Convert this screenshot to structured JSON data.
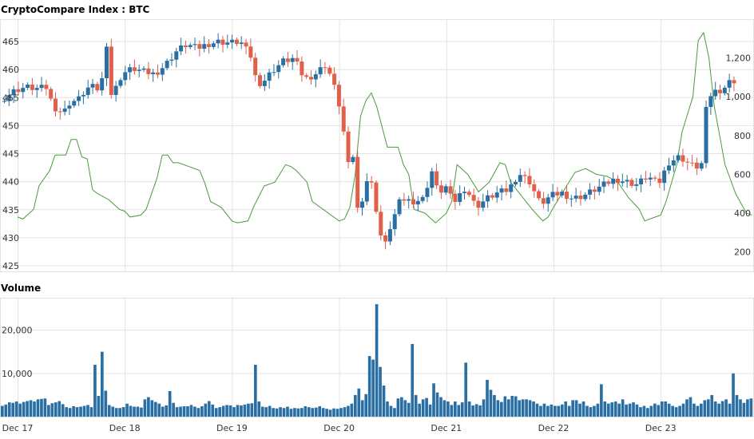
{
  "title": "CryptoCompare Index : BTC",
  "volume_title": "Volume",
  "colors": {
    "up": "#2a6fa3",
    "down": "#e0604a",
    "line": "#4a9a3c",
    "volume": "#2a6fa3",
    "grid": "#e3e3e3"
  },
  "chart_data": [
    {
      "type": "candlestick",
      "title": "CryptoCompare Index : BTC",
      "x_ticks": [
        "Dec 17",
        "Dec 18",
        "Dec 19",
        "Dec 20",
        "Dec 21",
        "Dec 22",
        "Dec 23"
      ],
      "y_left_ticks": [
        425,
        430,
        435,
        440,
        445,
        450,
        455,
        460,
        465
      ],
      "y_left_range": [
        424,
        469
      ],
      "y_right_ticks": [
        "200",
        "400",
        "600",
        "800",
        "1,000",
        "1,200"
      ],
      "y_right_values": [
        200,
        400,
        600,
        800,
        1000,
        1200
      ],
      "y_right_range": [
        100,
        1400
      ],
      "grid": true,
      "series": [
        {
          "name": "",
          "kind": "ohlc",
          "close_path": [
            [
              0.0,
              455.0
            ],
            [
              0.1,
              456.3
            ],
            [
              0.2,
              456.9
            ],
            [
              0.3,
              456.6
            ],
            [
              0.4,
              456.8
            ],
            [
              0.45,
              453.5
            ],
            [
              0.55,
              452.2
            ],
            [
              0.6,
              454.0
            ],
            [
              0.7,
              454.8
            ],
            [
              0.75,
              456.2
            ],
            [
              0.8,
              457.0
            ],
            [
              0.9,
              456.3
            ],
            [
              0.95,
              465.5
            ],
            [
              1.0,
              455.0
            ],
            [
              1.1,
              459.3
            ],
            [
              1.2,
              460.2
            ],
            [
              1.3,
              459.6
            ],
            [
              1.4,
              459.2
            ],
            [
              1.5,
              460.8
            ],
            [
              1.6,
              463.2
            ],
            [
              1.7,
              464.5
            ],
            [
              1.8,
              463.8
            ],
            [
              1.9,
              464.6
            ],
            [
              2.0,
              465.0
            ],
            [
              2.1,
              464.8
            ],
            [
              2.2,
              465.0
            ],
            [
              2.3,
              462.3
            ],
            [
              2.35,
              458.0
            ],
            [
              2.4,
              457.5
            ],
            [
              2.5,
              459.8
            ],
            [
              2.6,
              461.5
            ],
            [
              2.7,
              462.0
            ],
            [
              2.8,
              458.3
            ],
            [
              2.9,
              459.2
            ],
            [
              3.0,
              461.0
            ],
            [
              3.05,
              458.5
            ],
            [
              3.1,
              455.5
            ],
            [
              3.15,
              451.5
            ],
            [
              3.2,
              442.5
            ],
            [
              3.25,
              445.0
            ],
            [
              3.3,
              434.0
            ],
            [
              3.35,
              438.0
            ],
            [
              3.4,
              441.5
            ],
            [
              3.45,
              437.5
            ],
            [
              3.5,
              431.0
            ],
            [
              3.55,
              428.5
            ],
            [
              3.6,
              432.0
            ],
            [
              3.7,
              437.0
            ],
            [
              3.8,
              436.5
            ],
            [
              3.9,
              436.8
            ],
            [
              4.0,
              442.5
            ],
            [
              4.05,
              436.8
            ],
            [
              4.1,
              440.0
            ],
            [
              4.15,
              437.5
            ],
            [
              4.2,
              436.5
            ],
            [
              4.3,
              439.0
            ],
            [
              4.4,
              435.5
            ],
            [
              4.5,
              437.0
            ],
            [
              4.6,
              438.0
            ],
            [
              4.7,
              438.5
            ],
            [
              4.8,
              441.5
            ],
            [
              4.9,
              440.0
            ],
            [
              5.0,
              436.0
            ],
            [
              5.1,
              437.5
            ],
            [
              5.2,
              438.0
            ],
            [
              5.3,
              437.0
            ],
            [
              5.4,
              437.5
            ],
            [
              5.5,
              438.5
            ],
            [
              5.6,
              439.5
            ],
            [
              5.7,
              440.5
            ],
            [
              5.8,
              440.0
            ],
            [
              5.9,
              439.5
            ],
            [
              6.0,
              441.0
            ],
            [
              6.1,
              439.5
            ],
            [
              6.2,
              443.5
            ],
            [
              6.3,
              444.5
            ],
            [
              6.4,
              443.0
            ],
            [
              6.5,
              442.5
            ],
            [
              6.55,
              453.5
            ],
            [
              6.6,
              456.0
            ],
            [
              6.7,
              456.5
            ],
            [
              6.8,
              458.5
            ],
            [
              6.85,
              455.0
            ]
          ]
        },
        {
          "name": "",
          "kind": "line",
          "axis": "right",
          "points": [
            [
              0.0,
              380
            ],
            [
              0.05,
              370
            ],
            [
              0.15,
              420
            ],
            [
              0.2,
              540
            ],
            [
              0.3,
              620
            ],
            [
              0.35,
              700
            ],
            [
              0.45,
              700
            ],
            [
              0.5,
              780
            ],
            [
              0.55,
              780
            ],
            [
              0.6,
              690
            ],
            [
              0.65,
              680
            ],
            [
              0.7,
              520
            ],
            [
              0.75,
              500
            ],
            [
              0.85,
              470
            ],
            [
              0.95,
              420
            ],
            [
              1.0,
              410
            ],
            [
              1.05,
              380
            ],
            [
              1.15,
              390
            ],
            [
              1.2,
              420
            ],
            [
              1.3,
              580
            ],
            [
              1.35,
              700
            ],
            [
              1.4,
              700
            ],
            [
              1.45,
              660
            ],
            [
              1.5,
              660
            ],
            [
              1.6,
              640
            ],
            [
              1.7,
              620
            ],
            [
              1.75,
              550
            ],
            [
              1.8,
              460
            ],
            [
              1.9,
              430
            ],
            [
              2.0,
              360
            ],
            [
              2.05,
              350
            ],
            [
              2.15,
              360
            ],
            [
              2.2,
              430
            ],
            [
              2.3,
              540
            ],
            [
              2.4,
              560
            ],
            [
              2.5,
              650
            ],
            [
              2.55,
              640
            ],
            [
              2.6,
              620
            ],
            [
              2.7,
              560
            ],
            [
              2.75,
              460
            ],
            [
              2.9,
              400
            ],
            [
              3.0,
              360
            ],
            [
              3.05,
              370
            ],
            [
              3.1,
              430
            ],
            [
              3.15,
              600
            ],
            [
              3.2,
              900
            ],
            [
              3.25,
              980
            ],
            [
              3.3,
              1020
            ],
            [
              3.35,
              950
            ],
            [
              3.45,
              740
            ],
            [
              3.55,
              740
            ],
            [
              3.6,
              650
            ],
            [
              3.65,
              600
            ],
            [
              3.7,
              420
            ],
            [
              3.8,
              400
            ],
            [
              3.9,
              350
            ],
            [
              4.0,
              400
            ],
            [
              4.05,
              460
            ],
            [
              4.1,
              650
            ],
            [
              4.2,
              600
            ],
            [
              4.3,
              510
            ],
            [
              4.4,
              560
            ],
            [
              4.5,
              660
            ],
            [
              4.55,
              650
            ],
            [
              4.6,
              560
            ],
            [
              4.7,
              490
            ],
            [
              4.8,
              420
            ],
            [
              4.9,
              360
            ],
            [
              4.95,
              380
            ],
            [
              5.0,
              430
            ],
            [
              5.1,
              520
            ],
            [
              5.2,
              610
            ],
            [
              5.3,
              630
            ],
            [
              5.4,
              600
            ],
            [
              5.5,
              590
            ],
            [
              5.6,
              560
            ],
            [
              5.7,
              480
            ],
            [
              5.8,
              420
            ],
            [
              5.85,
              360
            ],
            [
              5.95,
              380
            ],
            [
              6.0,
              390
            ],
            [
              6.05,
              460
            ],
            [
              6.15,
              650
            ],
            [
              6.2,
              820
            ],
            [
              6.3,
              1000
            ],
            [
              6.35,
              1290
            ],
            [
              6.4,
              1330
            ],
            [
              6.45,
              1200
            ],
            [
              6.5,
              950
            ],
            [
              6.6,
              650
            ],
            [
              6.7,
              500
            ],
            [
              6.8,
              400
            ],
            [
              6.85,
              390
            ]
          ]
        }
      ]
    },
    {
      "type": "bar",
      "title": "Volume",
      "y_ticks": [
        "10,000",
        "20,000"
      ],
      "y_tick_values": [
        10000,
        20000
      ],
      "ylim": [
        0,
        27500
      ],
      "x_ticks": [
        "Dec 17",
        "Dec 18",
        "Dec 19",
        "Dec 20",
        "Dec 21",
        "Dec 22",
        "Dec 23"
      ],
      "values": [
        2500,
        2800,
        3300,
        3200,
        3500,
        3000,
        3400,
        3600,
        3800,
        3500,
        4000,
        4100,
        4200,
        2700,
        3100,
        3300,
        3600,
        2900,
        2200,
        2000,
        2400,
        2200,
        2300,
        2500,
        2700,
        2200,
        12000,
        4800,
        15000,
        6000,
        2700,
        2300,
        2000,
        2000,
        2200,
        3000,
        2500,
        2300,
        2300,
        2100,
        4000,
        4500,
        3800,
        3400,
        3000,
        2300,
        2600,
        5900,
        3200,
        2200,
        2300,
        2400,
        2400,
        2700,
        2300,
        2000,
        2400,
        3000,
        3600,
        2800,
        2000,
        2200,
        2500,
        2700,
        2600,
        2200,
        2700,
        2600,
        2800,
        3000,
        3100,
        12000,
        3500,
        2300,
        2200,
        2500,
        2000,
        1900,
        2200,
        2000,
        2300,
        1800,
        2000,
        1900,
        2000,
        2400,
        2200,
        2000,
        2100,
        2400,
        2000,
        1800,
        1600,
        1900,
        1800,
        2000,
        2200,
        2500,
        3000,
        5000,
        6500,
        3800,
        5200,
        14000,
        13200,
        26000,
        11500,
        7200,
        3500,
        2500,
        2000,
        4200,
        4500,
        3800,
        3200,
        16800,
        5000,
        3000,
        4000,
        4300,
        2800,
        7700,
        5600,
        4500,
        3800,
        3500,
        2700,
        3500,
        2700,
        3300,
        12500,
        3500,
        2600,
        2900,
        2600,
        4000,
        8500,
        6200,
        5000,
        3800,
        3400,
        4700,
        4000,
        4800,
        4700,
        3800,
        4000,
        4000,
        3800,
        3500,
        3000,
        2500,
        3000,
        2500,
        2800,
        2500,
        2500,
        2800,
        3500,
        2500,
        3800,
        3800,
        3000,
        3500,
        2500,
        2200,
        2500,
        3000,
        7500,
        3500,
        3000,
        3300,
        3500,
        3000,
        4000,
        2800,
        3000,
        3300,
        2800,
        2200,
        2500,
        2000,
        2500,
        3000,
        2700,
        3500,
        3500,
        3000,
        2500,
        2200,
        2500,
        3000,
        4000,
        4500,
        3000,
        2500,
        3000,
        3800,
        4000,
        5000,
        3500,
        3000,
        3600,
        4000,
        3000,
        10000,
        5000,
        4000,
        3200,
        4000,
        4200
      ]
    }
  ]
}
